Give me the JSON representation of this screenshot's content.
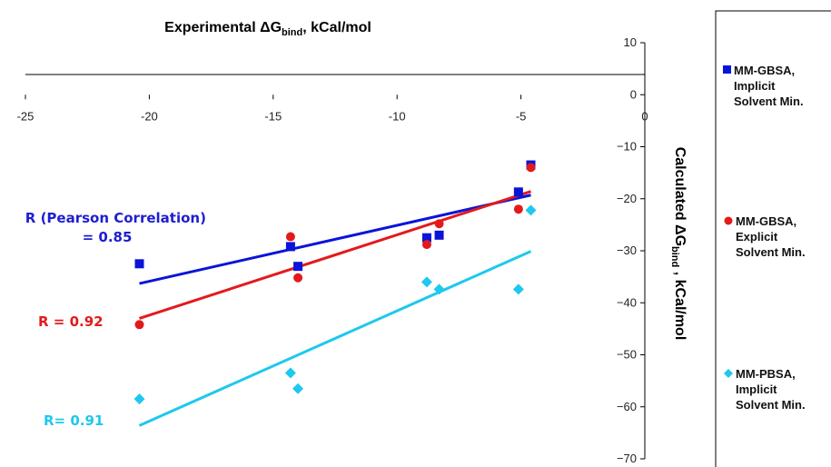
{
  "chart_data": {
    "type": "scatter",
    "title": "",
    "xlabel": {
      "main": "Experimental  ΔG",
      "sub": "bind",
      "suffix": ", kCal/mol"
    },
    "ylabel": {
      "main": "Calculated  ΔG",
      "sub": "bind",
      "suffix": " , kCal/mol"
    },
    "xlim": [
      -25,
      0
    ],
    "ylim": [
      -70,
      10
    ],
    "x_ticks": [
      -25,
      -20,
      -15,
      -10,
      -5,
      0
    ],
    "y_ticks": [
      10,
      0,
      -10,
      -20,
      -30,
      -40,
      -50,
      -60,
      -70
    ],
    "grid": false,
    "legend_position": "right",
    "series": [
      {
        "name": [
          "MM-GBSA,",
          "Implicit",
          "Solvent Min."
        ],
        "marker": "square",
        "color": "#0A14D8",
        "points": [
          [
            -20.4,
            -32.5
          ],
          [
            -14.3,
            -29.2
          ],
          [
            -14.0,
            -33.0
          ],
          [
            -8.8,
            -27.5
          ],
          [
            -8.3,
            -27.0
          ],
          [
            -5.1,
            -18.7
          ],
          [
            -4.6,
            -13.5
          ]
        ],
        "fit": {
          "x": [
            -20.4,
            -4.6
          ],
          "y": [
            -36.3,
            -19.3
          ]
        }
      },
      {
        "name": [
          "MM-GBSA,",
          "Explicit",
          "Solvent Min."
        ],
        "marker": "circle",
        "color": "#E31A1C",
        "points": [
          [
            -20.4,
            -44.2
          ],
          [
            -14.3,
            -27.3
          ],
          [
            -14.0,
            -35.2
          ],
          [
            -8.8,
            -28.8
          ],
          [
            -8.3,
            -24.8
          ],
          [
            -5.1,
            -22.0
          ],
          [
            -4.6,
            -14.0
          ]
        ],
        "fit": {
          "x": [
            -20.4,
            -4.6
          ],
          "y": [
            -43.0,
            -18.6
          ]
        }
      },
      {
        "name": [
          "MM-PBSA,",
          "Implicit",
          "Solvent Min."
        ],
        "marker": "diamond",
        "color": "#1EC8EE",
        "points": [
          [
            -20.4,
            -58.5
          ],
          [
            -14.3,
            -53.5
          ],
          [
            -14.0,
            -56.5
          ],
          [
            -8.8,
            -36.0
          ],
          [
            -8.3,
            -37.4
          ],
          [
            -5.1,
            -37.4
          ],
          [
            -4.6,
            -22.2
          ]
        ],
        "fit": {
          "x": [
            -20.4,
            -4.6
          ],
          "y": [
            -63.6,
            -30.1
          ]
        }
      }
    ],
    "annotations": [
      {
        "lines": [
          "R (Pearson Correlation)",
          "= 0.85"
        ],
        "color": "#1E1ED2"
      },
      {
        "lines": [
          "R = 0.92"
        ],
        "color": "#E31A1C"
      },
      {
        "lines": [
          "R= 0.91"
        ],
        "color": "#1EC8EE"
      }
    ]
  }
}
